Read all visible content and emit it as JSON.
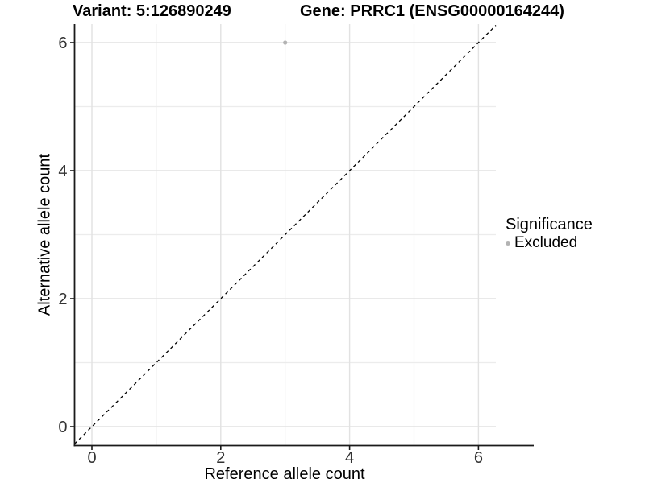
{
  "titles": {
    "variant": "Variant: 5:126890249",
    "gene": "Gene: PRRC1 (ENSG00000164244)"
  },
  "legend": {
    "title": "Significance",
    "items": [
      {
        "label": "Excluded",
        "color": "#b3b3b3"
      }
    ]
  },
  "colors": {
    "background": "#ffffff",
    "grid_major": "#e2e2e2",
    "grid_minor": "#ececec",
    "axis_line": "#1a1a1a",
    "tick_label": "#333333",
    "point": "#b3b3b3",
    "reference_line": "#000000"
  },
  "chart_data": {
    "type": "scatter",
    "title": "Variant: 5:126890249   Gene: PRRC1 (ENSG00000164244)",
    "xlabel": "Reference allele count",
    "ylabel": "Alternative allele count",
    "xlim": [
      -0.27,
      6.27
    ],
    "ylim": [
      -0.3,
      6.3
    ],
    "x_ticks": [
      0,
      2,
      4,
      6
    ],
    "y_ticks": [
      0,
      2,
      4,
      6
    ],
    "x_minor_ticks": [
      1,
      3,
      5
    ],
    "y_minor_ticks": [
      1,
      3,
      5
    ],
    "grid": true,
    "legend_position": "right",
    "series": [
      {
        "name": "Excluded",
        "color": "#b3b3b3",
        "points": [
          [
            3,
            6
          ]
        ]
      }
    ],
    "reference_line": {
      "type": "identity",
      "equation": "y = x",
      "style": "dashed",
      "color": "#000000"
    }
  }
}
